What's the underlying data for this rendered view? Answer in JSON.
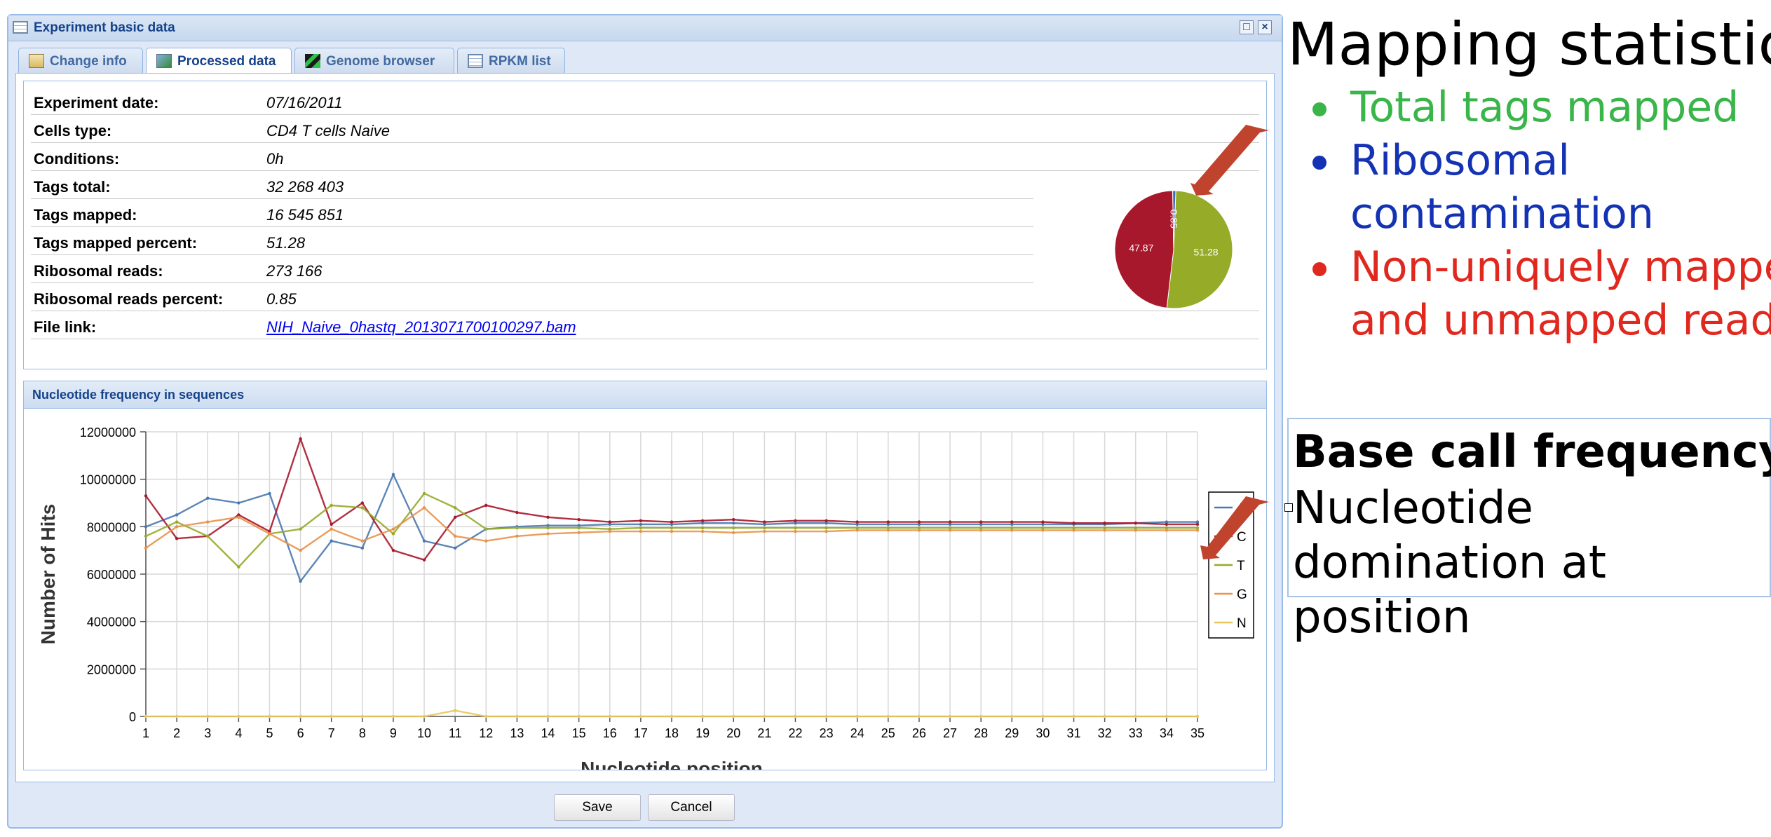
{
  "window": {
    "title": "Experiment basic data"
  },
  "tabs": [
    {
      "label": "Change info"
    },
    {
      "label": "Processed data"
    },
    {
      "label": "Genome browser"
    },
    {
      "label": "RPKM list"
    }
  ],
  "details": [
    {
      "key": "Experiment date:",
      "value": "07/16/2011"
    },
    {
      "key": "Cells type:",
      "value": "CD4 T cells Naive"
    },
    {
      "key": "Conditions:",
      "value": "0h"
    },
    {
      "key": "Tags total:",
      "value": "32 268 403"
    },
    {
      "key": "Tags mapped:",
      "value": "16 545 851"
    },
    {
      "key": "Tags mapped percent:",
      "value": "51.28"
    },
    {
      "key": "Ribosomal reads:",
      "value": "273 166"
    },
    {
      "key": "Ribosomal reads percent:",
      "value": "0.85"
    },
    {
      "key": "File link:",
      "value": "NIH_Naive_0hastq_2013071700100297.bam"
    }
  ],
  "section": {
    "title": "Nucleotide frequency in sequences"
  },
  "buttons": {
    "save": "Save",
    "cancel": "Cancel"
  },
  "annotations": {
    "mapping_title": "Mapping statistics",
    "bullets": [
      {
        "lines": [
          "Total tags mapped"
        ],
        "color": "#39b54a"
      },
      {
        "lines": [
          "Ribosomal",
          "contamination"
        ],
        "color": "#1432b4"
      },
      {
        "lines": [
          "Non-uniquely mapped",
          "and unmapped reads"
        ],
        "color": "#e0281e"
      }
    ],
    "base_title": "Base call frequency",
    "base_body": "Nucleotide domination at position",
    "arrow_color": "#c0432e"
  },
  "chart_data": [
    {
      "type": "pie",
      "labels": [
        "51.28",
        "47.87",
        "0.85"
      ],
      "values": [
        51.28,
        47.87,
        0.85
      ],
      "colors": [
        "#96ab28",
        "#a8182c",
        "#3d6fb4"
      ]
    },
    {
      "type": "line",
      "xlabel": "Nucleotide position",
      "ylabel": "Number of Hits",
      "x": [
        1,
        2,
        3,
        4,
        5,
        6,
        7,
        8,
        9,
        10,
        11,
        12,
        13,
        14,
        15,
        16,
        17,
        18,
        19,
        20,
        21,
        22,
        23,
        24,
        25,
        26,
        27,
        28,
        29,
        30,
        31,
        32,
        33,
        34,
        35
      ],
      "ylim": [
        0,
        12000000
      ],
      "yticks": [
        0,
        2000000,
        4000000,
        6000000,
        8000000,
        10000000,
        12000000
      ],
      "ytick_labels": [
        "0",
        "2000000",
        "4000000",
        "6000000",
        "8000000",
        "10000000",
        "12000000"
      ],
      "grid": true,
      "legend": "right",
      "series": [
        {
          "name": "A",
          "color": "#4a78b0",
          "values": [
            8000000,
            8500000,
            9200000,
            9000000,
            9400000,
            5700000,
            7400000,
            7100000,
            10200000,
            7400000,
            7100000,
            7900000,
            8000000,
            8050000,
            8050000,
            8100000,
            8100000,
            8100000,
            8150000,
            8150000,
            8100000,
            8150000,
            8150000,
            8100000,
            8100000,
            8100000,
            8100000,
            8100000,
            8100000,
            8100000,
            8100000,
            8100000,
            8150000,
            8200000,
            8200000
          ]
        },
        {
          "name": "C",
          "color": "#a8182c",
          "values": [
            9300000,
            7500000,
            7600000,
            8500000,
            7800000,
            11700000,
            8100000,
            9000000,
            7000000,
            6600000,
            8400000,
            8900000,
            8600000,
            8400000,
            8300000,
            8200000,
            8250000,
            8200000,
            8250000,
            8300000,
            8200000,
            8250000,
            8250000,
            8200000,
            8200000,
            8200000,
            8200000,
            8200000,
            8200000,
            8200000,
            8150000,
            8150000,
            8150000,
            8100000,
            8100000
          ]
        },
        {
          "name": "T",
          "color": "#96ab28",
          "values": [
            7600000,
            8200000,
            7600000,
            6300000,
            7700000,
            7900000,
            8900000,
            8800000,
            7700000,
            9400000,
            8800000,
            7900000,
            7950000,
            7950000,
            7950000,
            7900000,
            7950000,
            7950000,
            7950000,
            7950000,
            7950000,
            7950000,
            7950000,
            7950000,
            7950000,
            7950000,
            7950000,
            7950000,
            7950000,
            7950000,
            7950000,
            7950000,
            7950000,
            7950000,
            7950000
          ]
        },
        {
          "name": "G",
          "color": "#e8924a",
          "values": [
            7100000,
            8000000,
            8200000,
            8400000,
            7700000,
            7000000,
            7900000,
            7400000,
            7900000,
            8800000,
            7600000,
            7400000,
            7600000,
            7700000,
            7750000,
            7800000,
            7800000,
            7800000,
            7800000,
            7750000,
            7800000,
            7800000,
            7800000,
            7850000,
            7850000,
            7850000,
            7850000,
            7850000,
            7850000,
            7850000,
            7850000,
            7850000,
            7850000,
            7850000,
            7850000
          ]
        },
        {
          "name": "N",
          "color": "#e8c85a",
          "values": [
            0,
            0,
            0,
            0,
            0,
            0,
            0,
            0,
            0,
            0,
            250000,
            0,
            0,
            0,
            0,
            0,
            0,
            0,
            0,
            0,
            0,
            0,
            0,
            0,
            0,
            0,
            0,
            0,
            0,
            0,
            0,
            0,
            0,
            0,
            0
          ]
        }
      ]
    }
  ]
}
